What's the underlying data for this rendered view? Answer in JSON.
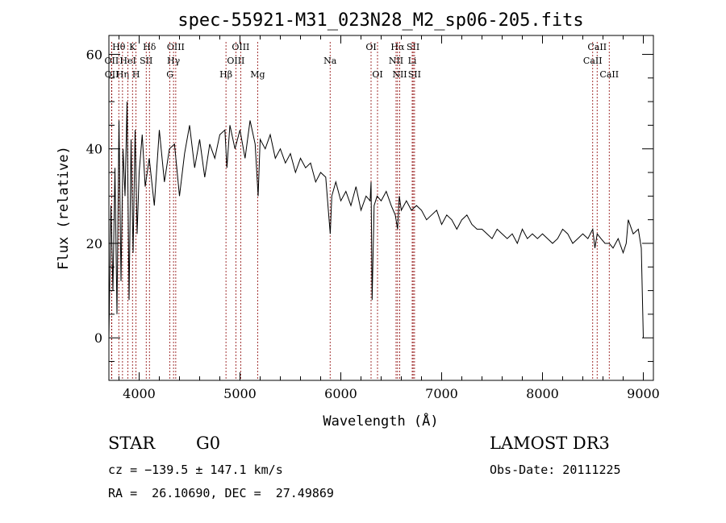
{
  "chart_data": {
    "type": "line",
    "title": "spec-55921-M31_023N28_M2_sp06-205.fits",
    "xlabel": "Wavelength (Å)",
    "ylabel": "Flux (relative)",
    "xlim": [
      3700,
      9100
    ],
    "ylim": [
      -9,
      64
    ],
    "x_ticks": [
      4000,
      5000,
      6000,
      7000,
      8000,
      9000
    ],
    "y_ticks": [
      0,
      20,
      40,
      60
    ],
    "x_minor_step": 200,
    "y_minor_step": 5,
    "spectrum": {
      "name": "flux",
      "x": [
        3700,
        3720,
        3740,
        3760,
        3780,
        3800,
        3820,
        3840,
        3860,
        3880,
        3900,
        3920,
        3940,
        3960,
        3980,
        4000,
        4030,
        4060,
        4100,
        4150,
        4200,
        4250,
        4300,
        4350,
        4400,
        4450,
        4500,
        4550,
        4600,
        4650,
        4700,
        4750,
        4800,
        4850,
        4870,
        4900,
        4950,
        5000,
        5050,
        5100,
        5150,
        5180,
        5200,
        5250,
        5300,
        5350,
        5400,
        5450,
        5500,
        5550,
        5600,
        5650,
        5700,
        5750,
        5800,
        5850,
        5880,
        5895,
        5910,
        5950,
        6000,
        6050,
        6100,
        6150,
        6200,
        6250,
        6290,
        6300,
        6310,
        6330,
        6360,
        6400,
        6450,
        6500,
        6540,
        6563,
        6580,
        6600,
        6650,
        6700,
        6750,
        6800,
        6850,
        6900,
        6950,
        7000,
        7050,
        7100,
        7150,
        7200,
        7250,
        7300,
        7350,
        7400,
        7450,
        7500,
        7550,
        7600,
        7650,
        7700,
        7750,
        7800,
        7850,
        7900,
        7950,
        8000,
        8050,
        8100,
        8150,
        8200,
        8250,
        8300,
        8350,
        8400,
        8450,
        8498,
        8520,
        8542,
        8580,
        8620,
        8662,
        8700,
        8750,
        8800,
        8830,
        8850,
        8900,
        8950,
        8980,
        9000
      ],
      "y": [
        0,
        28,
        10,
        36,
        5,
        46,
        12,
        40,
        30,
        50,
        8,
        42,
        18,
        44,
        22,
        35,
        43,
        32,
        38,
        28,
        44,
        33,
        40,
        41,
        30,
        39,
        45,
        36,
        42,
        34,
        41,
        38,
        43,
        44,
        36,
        45,
        40,
        44,
        38,
        46,
        41,
        30,
        42,
        40,
        43,
        38,
        40,
        37,
        39,
        35,
        38,
        36,
        37,
        33,
        35,
        34,
        26,
        22,
        30,
        33,
        29,
        31,
        28,
        32,
        27,
        30,
        29,
        33,
        8,
        28,
        30,
        29,
        31,
        28,
        26,
        23,
        30,
        27,
        29,
        27,
        28,
        27,
        25,
        26,
        27,
        24,
        26,
        25,
        23,
        25,
        26,
        24,
        23,
        23,
        22,
        21,
        23,
        22,
        21,
        22,
        20,
        23,
        21,
        22,
        21,
        22,
        21,
        20,
        21,
        23,
        22,
        20,
        21,
        22,
        21,
        23,
        19,
        22,
        21,
        20,
        20,
        19,
        21,
        18,
        20,
        25,
        22,
        23,
        19,
        0
      ]
    },
    "lines": [
      {
        "label": "Hθ",
        "x": 3798,
        "row": 1
      },
      {
        "label": "OII",
        "x": 3727,
        "row": 2
      },
      {
        "label": "OII",
        "x": 3729,
        "row": 3
      },
      {
        "label": "Hη",
        "x": 3835,
        "row": 3
      },
      {
        "label": "K",
        "x": 3934,
        "row": 1
      },
      {
        "label": "HeI",
        "x": 3889,
        "row": 2
      },
      {
        "label": "SII",
        "x": 4070,
        "row": 2
      },
      {
        "label": "H",
        "x": 3969,
        "row": 3
      },
      {
        "label": "Hδ",
        "x": 4102,
        "row": 1
      },
      {
        "label": "OIII",
        "x": 4363,
        "row": 1
      },
      {
        "label": "Hγ",
        "x": 4341,
        "row": 2
      },
      {
        "label": "G",
        "x": 4305,
        "row": 3
      },
      {
        "label": "Hβ",
        "x": 4861,
        "row": 3
      },
      {
        "label": "OIII",
        "x": 5007,
        "row": 1
      },
      {
        "label": "OIII",
        "x": 4959,
        "row": 2
      },
      {
        "label": "Mg",
        "x": 5175,
        "row": 3
      },
      {
        "label": "Na",
        "x": 5894,
        "row": 2
      },
      {
        "label": "OI",
        "x": 6300,
        "row": 1
      },
      {
        "label": "OI",
        "x": 6364,
        "row": 3
      },
      {
        "label": "Hα",
        "x": 6563,
        "row": 1
      },
      {
        "label": "NII",
        "x": 6548,
        "row": 2
      },
      {
        "label": "NII",
        "x": 6584,
        "row": 3
      },
      {
        "label": "SII",
        "x": 6717,
        "row": 1
      },
      {
        "label": "Li",
        "x": 6708,
        "row": 2
      },
      {
        "label": "SII",
        "x": 6731,
        "row": 3
      },
      {
        "label": "CaII",
        "x": 8542,
        "row": 1
      },
      {
        "label": "CaII",
        "x": 8498,
        "row": 2
      },
      {
        "label": "CaII",
        "x": 8662,
        "row": 3
      }
    ]
  },
  "info": {
    "object_class": "STAR",
    "subclass": "G0",
    "survey": "LAMOST DR3",
    "cz": "cz = −139.5 ± 147.1 km/s",
    "obs_date": "Obs-Date: 20111225",
    "coords": "RA =  26.10690, DEC =  27.49869"
  },
  "colors": {
    "spectrum": "#000000",
    "line_markers": "#8b0000",
    "axes": "#000000"
  }
}
